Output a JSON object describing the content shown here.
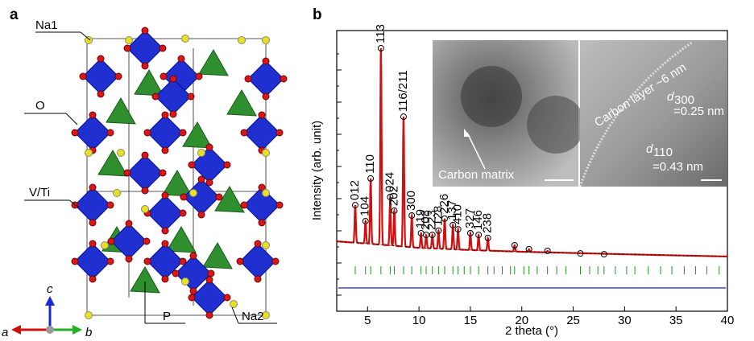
{
  "panel_a": {
    "label": "a",
    "atom_labels": [
      "Na1",
      "O",
      "V/Ti",
      "P",
      "Na2"
    ],
    "axis_labels": [
      "a",
      "b",
      "c"
    ]
  },
  "chart_data": {
    "type": "line",
    "panel_label": "b",
    "x_label": "2 theta (°)",
    "y_label": "Intensity (arb. unit)",
    "xlim": [
      2,
      40
    ],
    "xticks": [
      5,
      10,
      15,
      20,
      25,
      30,
      35,
      40
    ],
    "ylim": [
      0,
      100
    ],
    "observed_color": "#000000",
    "fit_color": "#d01010",
    "bragg_color": "#2a8a2a",
    "difference_color": "#1a1acc",
    "peaks": {
      "x": [
        3.8,
        4.8,
        5.3,
        6.3,
        7.2,
        7.6,
        8.5,
        9.3,
        10.2,
        10.7,
        11.3,
        11.9,
        12.5,
        13.3,
        13.8,
        15.0,
        15.8,
        16.7,
        19.3,
        20.7,
        22.5,
        25.7,
        28
      ],
      "y": [
        37.8,
        32.1,
        47.3,
        93.7,
        40.7,
        35.8,
        69.3,
        34.1,
        27.8,
        27.2,
        27.2,
        28.7,
        33.0,
        30.7,
        29.2,
        27.8,
        27.2,
        26.1,
        23.5,
        22.1,
        21.5,
        20.6,
        20.3
      ],
      "labels": [
        "012",
        "104",
        "110",
        "113",
        "024",
        "202",
        "116/211",
        "300",
        "119",
        "208",
        "223",
        "128",
        "226",
        "137",
        "410",
        "327",
        "146",
        "238",
        null,
        null,
        null,
        null,
        null
      ]
    },
    "background": {
      "x": [
        2,
        5,
        10,
        15,
        20,
        30,
        40
      ],
      "y": [
        24.9,
        24.1,
        22.6,
        21.8,
        21.2,
        20.3,
        19.5
      ]
    },
    "bragg_level": 14.6,
    "bragg_positions": [
      3.8,
      4.8,
      5.3,
      6.3,
      7.2,
      7.6,
      8.5,
      9.3,
      10.2,
      10.7,
      11.3,
      11.9,
      12.5,
      13.3,
      13.8,
      14.4,
      15.0,
      15.8,
      16.7,
      17.3,
      18.1,
      18.9,
      19.3,
      20.2,
      20.7,
      21.5,
      22.5,
      23.4,
      24.3,
      25.7,
      26.6,
      27.4,
      28.0,
      29.1,
      30.2,
      31.0,
      32.3,
      33.5,
      34.6,
      35.8,
      36.9,
      38.0,
      39.2
    ],
    "difference_level": 8.3,
    "inset_labels": {
      "carbon_matrix": "Carbon matrix",
      "carbon_layer": "Carbon layer ~6 nm",
      "d300": "d",
      "d300_sub": "300",
      "d300_value": "=0.25 nm",
      "d110": "d",
      "d110_sub": "110",
      "d110_value": "=0.43 nm"
    }
  }
}
